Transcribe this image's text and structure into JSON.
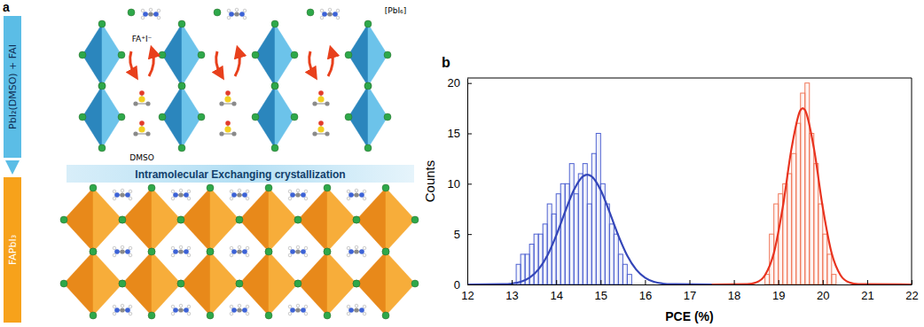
{
  "panel_labels": [
    "a",
    "b"
  ],
  "diagram": {
    "steps": [
      "PbI₂(DMSO) + FAI",
      "FAPbI₃"
    ],
    "process": "Intramolecular Exchanging crystallization",
    "labels": {
      "fa_i": "FA⁺I⁻",
      "pbi6": "[PbI₆]",
      "dmso": "DMSO"
    }
  },
  "chart_data": {
    "type": "histogram",
    "x_label": "PCE (%)",
    "y_label": "Counts",
    "xlim": [
      12,
      22
    ],
    "xticks": [
      12,
      13,
      14,
      15,
      16,
      17,
      18,
      19,
      20,
      21,
      22
    ],
    "ylim": [
      0,
      20.5
    ],
    "yticks": [
      0,
      5,
      10,
      15,
      20
    ],
    "grid": false,
    "series": [
      {
        "type": "histogram",
        "color": "#4f62d1",
        "bins": [
          13.1,
          13.2,
          13.3,
          13.4,
          13.5,
          13.6,
          13.7,
          13.8,
          13.9,
          14.0,
          14.1,
          14.2,
          14.3,
          14.4,
          14.5,
          14.6,
          14.7,
          14.8,
          14.9,
          15.0,
          15.1,
          15.2,
          15.3,
          15.4,
          15.5,
          15.6,
          15.7
        ],
        "values": [
          2,
          3,
          3,
          4,
          5,
          5,
          6,
          8,
          7,
          9,
          10,
          10,
          12,
          9,
          11,
          12,
          8,
          13,
          15,
          10,
          8,
          6,
          5,
          3,
          2,
          1
        ]
      },
      {
        "type": "histogram",
        "color": "#f0785a",
        "bins": [
          18.7,
          18.8,
          18.9,
          19.0,
          19.1,
          19.2,
          19.3,
          19.4,
          19.5,
          19.6,
          19.7,
          19.8,
          19.9,
          20.0,
          20.1,
          20.2,
          20.3
        ],
        "values": [
          1,
          5,
          8,
          9,
          10,
          11,
          13,
          16,
          19,
          20,
          15,
          12,
          8,
          5,
          3,
          1
        ]
      },
      {
        "type": "line",
        "color": "#3446b8",
        "line_style": "solid",
        "x": [
          12,
          12.8,
          13.0,
          13.2,
          13.4,
          13.6,
          13.8,
          14.0,
          14.2,
          14.4,
          14.6,
          14.7,
          14.8,
          15.0,
          15.2,
          15.4,
          15.6,
          15.8,
          16.0,
          16.2,
          16.4,
          16.6,
          17.6
        ],
        "values": [
          0,
          0.03,
          0.09,
          0.26,
          0.67,
          1.48,
          2.86,
          4.85,
          7.21,
          9.39,
          10.72,
          10.9,
          10.72,
          9.39,
          7.21,
          4.85,
          2.86,
          1.48,
          0.67,
          0.26,
          0.09,
          0.03,
          0
        ]
      },
      {
        "type": "line",
        "color": "#e8331f",
        "line_style": "solid",
        "x": [
          17.5,
          18.3,
          18.5,
          18.7,
          18.9,
          19.1,
          19.3,
          19.5,
          19.55,
          19.6,
          19.8,
          20.0,
          20.2,
          20.4,
          20.6,
          20.8,
          22
        ],
        "values": [
          0,
          0.03,
          0.19,
          0.92,
          3.12,
          7.66,
          13.56,
          17.32,
          17.5,
          17.32,
          13.56,
          7.66,
          3.12,
          0.92,
          0.19,
          0.03,
          0
        ]
      }
    ]
  }
}
